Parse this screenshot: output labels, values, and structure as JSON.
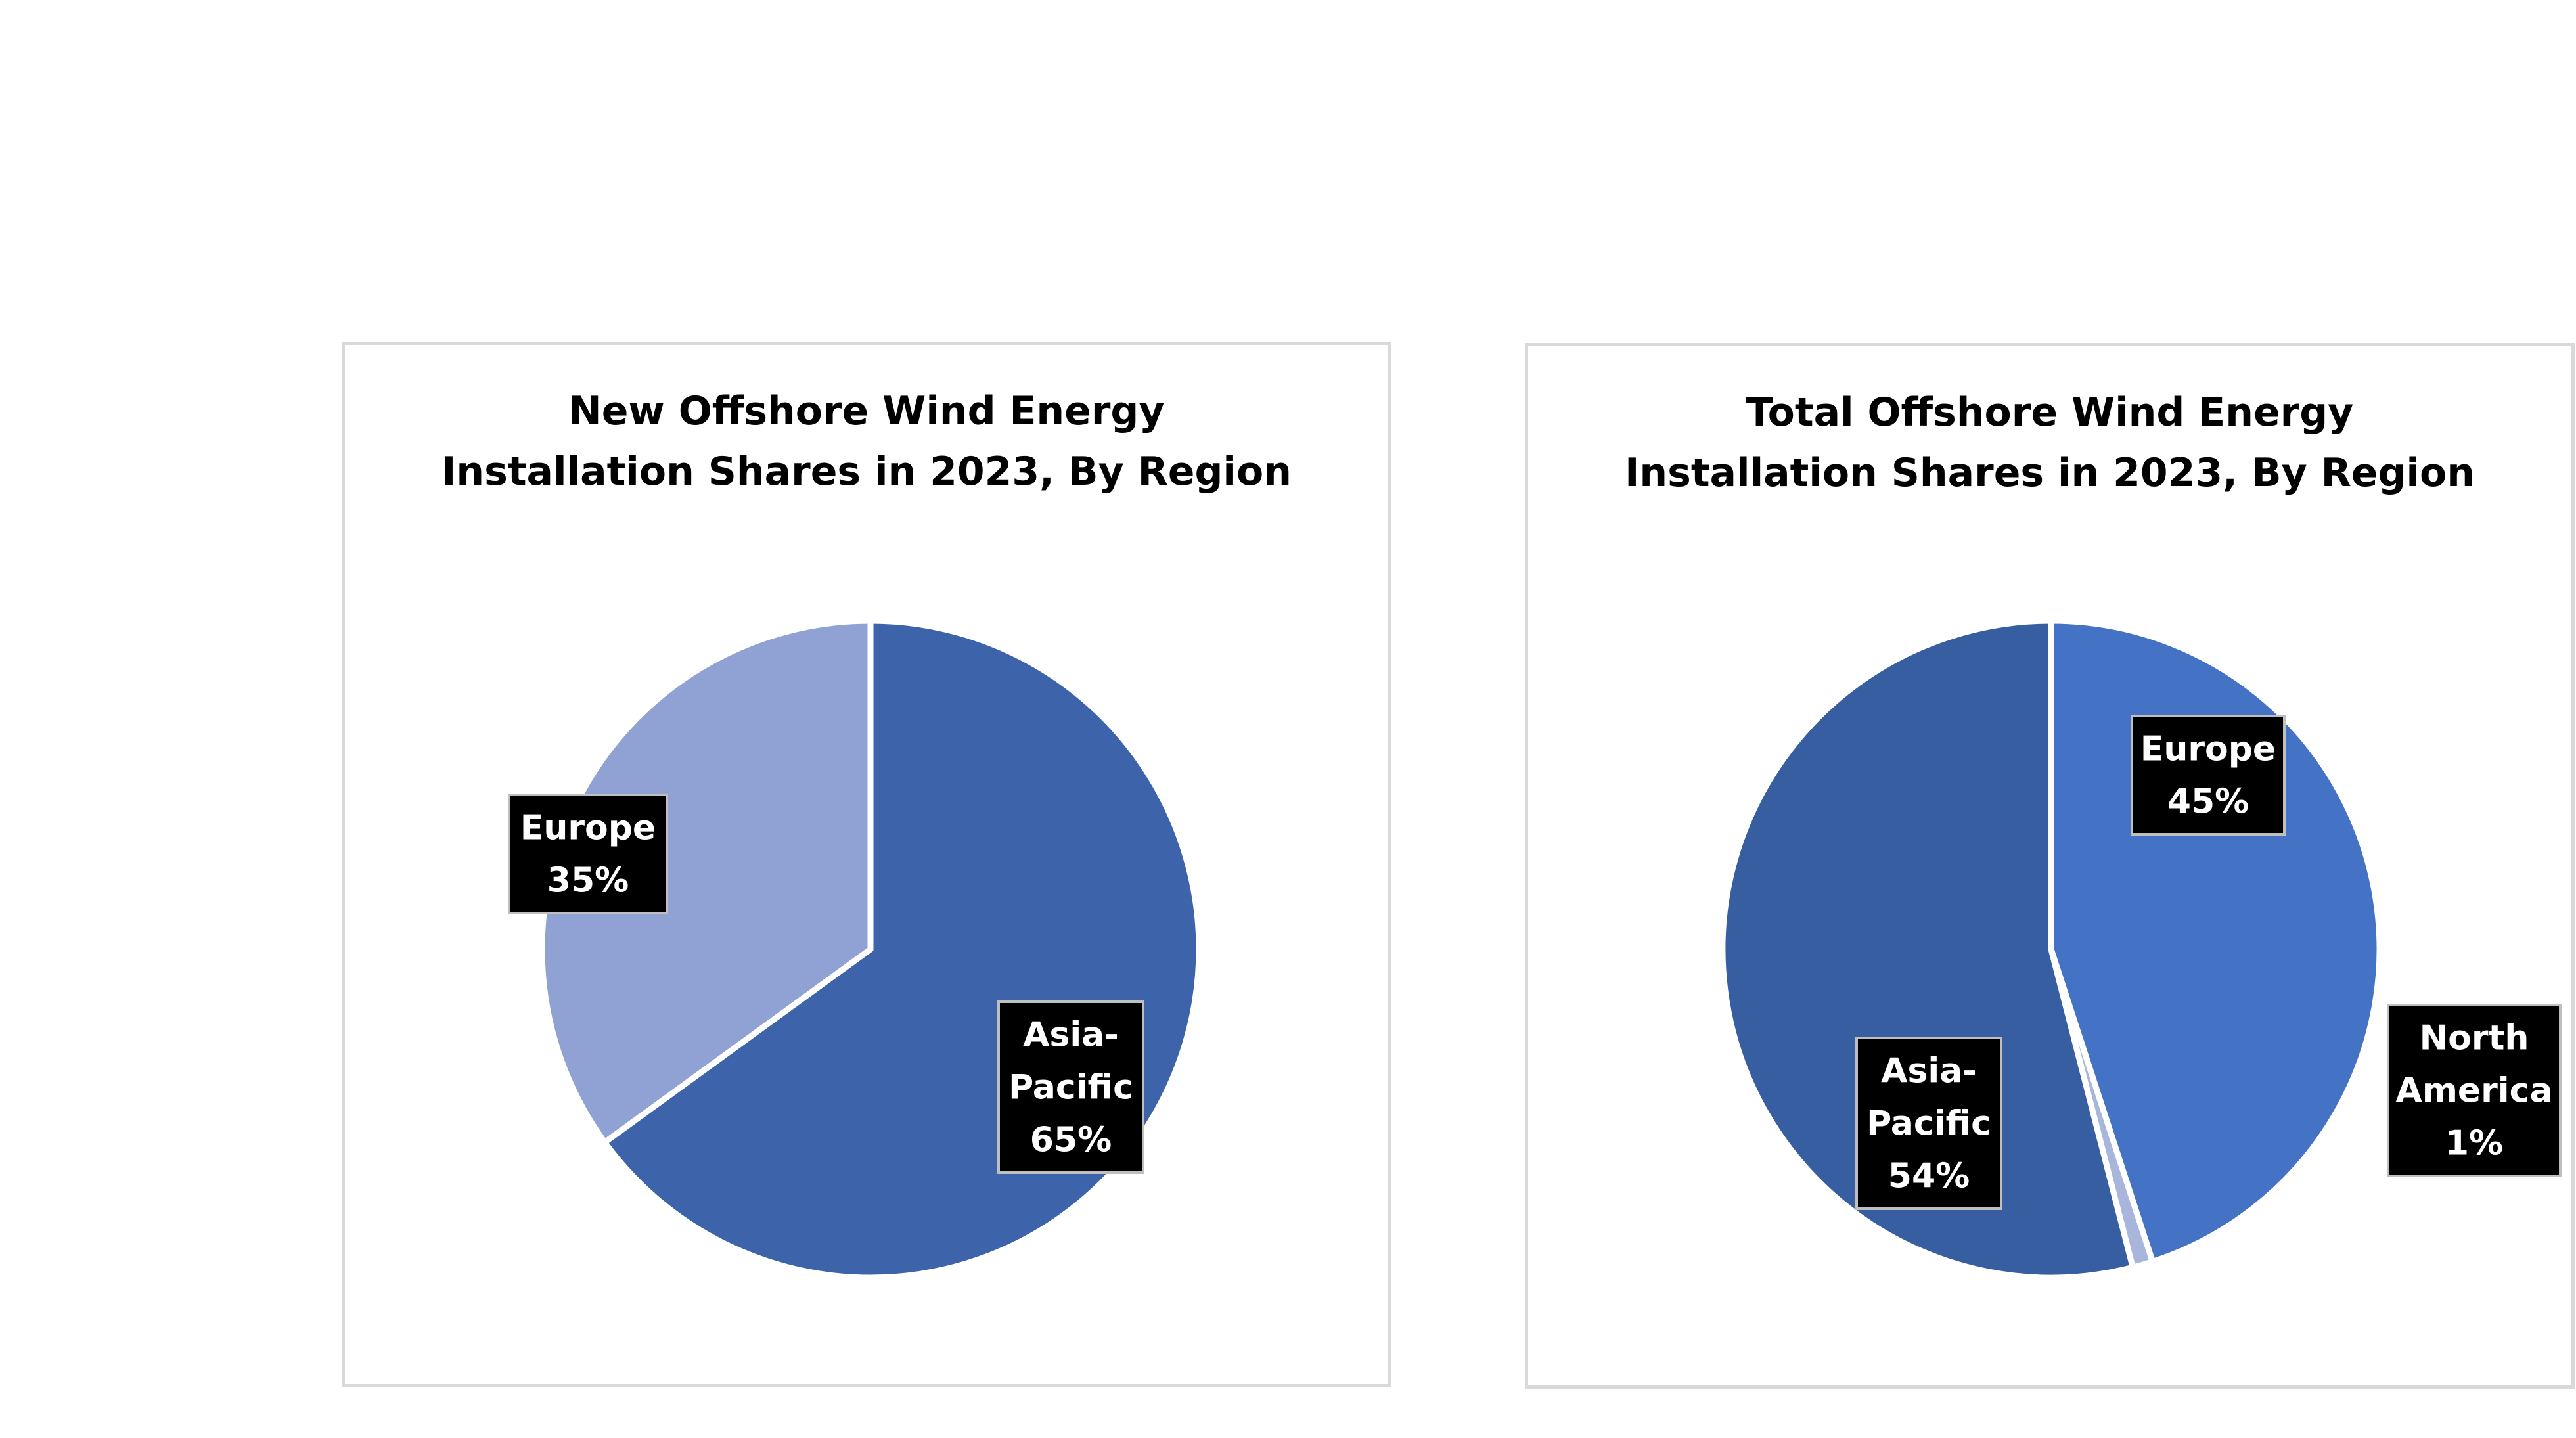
{
  "chart_data": [
    {
      "type": "pie",
      "title_lines": [
        "New Offshore Wind Energy",
        "Installation Shares in 2023, By Region"
      ],
      "slices": [
        {
          "label_lines": [
            "Asia-",
            "Pacific"
          ],
          "value": 65,
          "value_label": "65%",
          "color": "#3d64aa"
        },
        {
          "label_lines": [
            "Europe"
          ],
          "value": 35,
          "value_label": "35%",
          "color": "#8fa2d3"
        }
      ]
    },
    {
      "type": "pie",
      "title_lines": [
        "Total Offshore Wind Energy",
        "Installation Shares in 2023, By Region"
      ],
      "slices": [
        {
          "label_lines": [
            "Europe"
          ],
          "value": 45,
          "value_label": "45%",
          "color": "#4472c4"
        },
        {
          "label_lines": [
            "North",
            "America"
          ],
          "value": 1,
          "value_label": "1%",
          "color": "#a8b6dc"
        },
        {
          "label_lines": [
            "Asia-",
            "Pacific"
          ],
          "value": 54,
          "value_label": "54%",
          "color": "#375ea1"
        }
      ]
    }
  ]
}
